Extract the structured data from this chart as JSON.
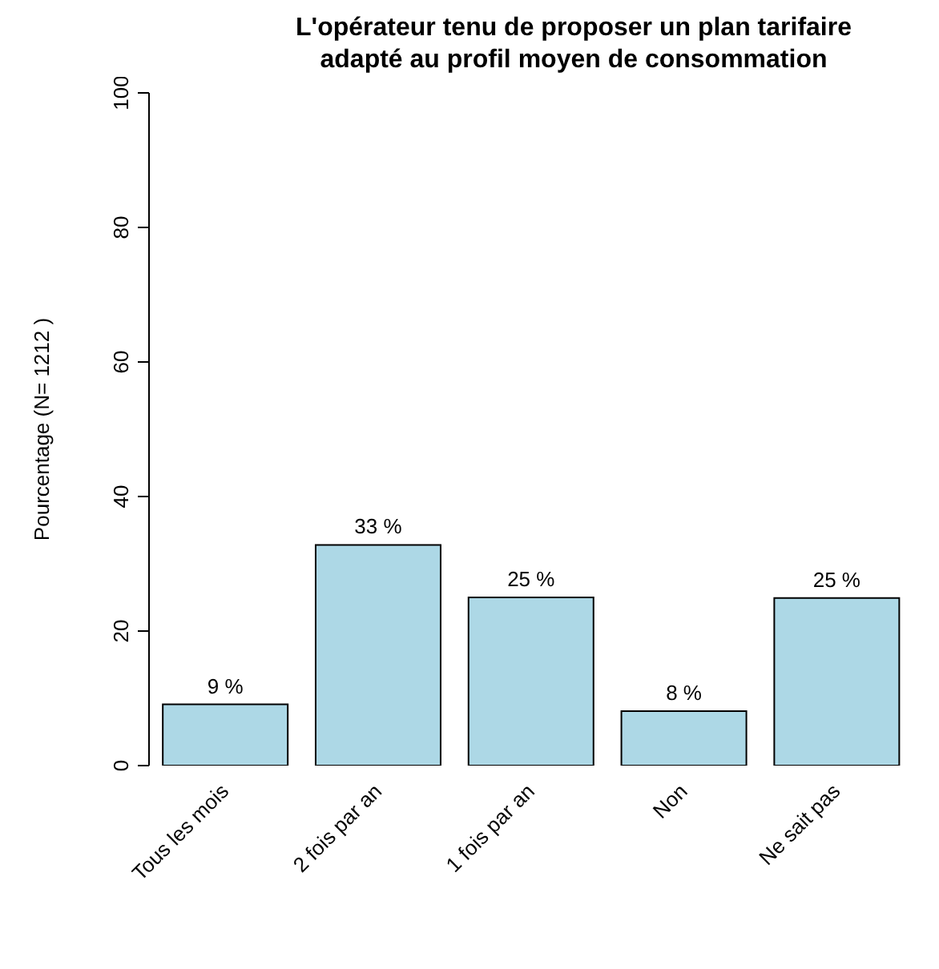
{
  "chart_data": {
    "type": "bar",
    "title": "L'opérateur tenu de proposer un plan tarifaire adapté au profil moyen de consommation",
    "ylabel": "Pourcentage (N= 1212 )",
    "categories": [
      "Tous les mois",
      "2 fois par an",
      "1 fois par an",
      "Non",
      "Ne sait pas"
    ],
    "values": [
      9.1,
      32.8,
      25.0,
      8.1,
      24.9
    ],
    "value_labels": [
      "9 %",
      "33 %",
      "25 %",
      "8 %",
      "25 %"
    ],
    "color": "#add8e6",
    "ylim": [
      0,
      100
    ],
    "yticks": [
      0,
      20,
      40,
      60,
      80,
      100
    ],
    "grid": false,
    "legend": false
  }
}
